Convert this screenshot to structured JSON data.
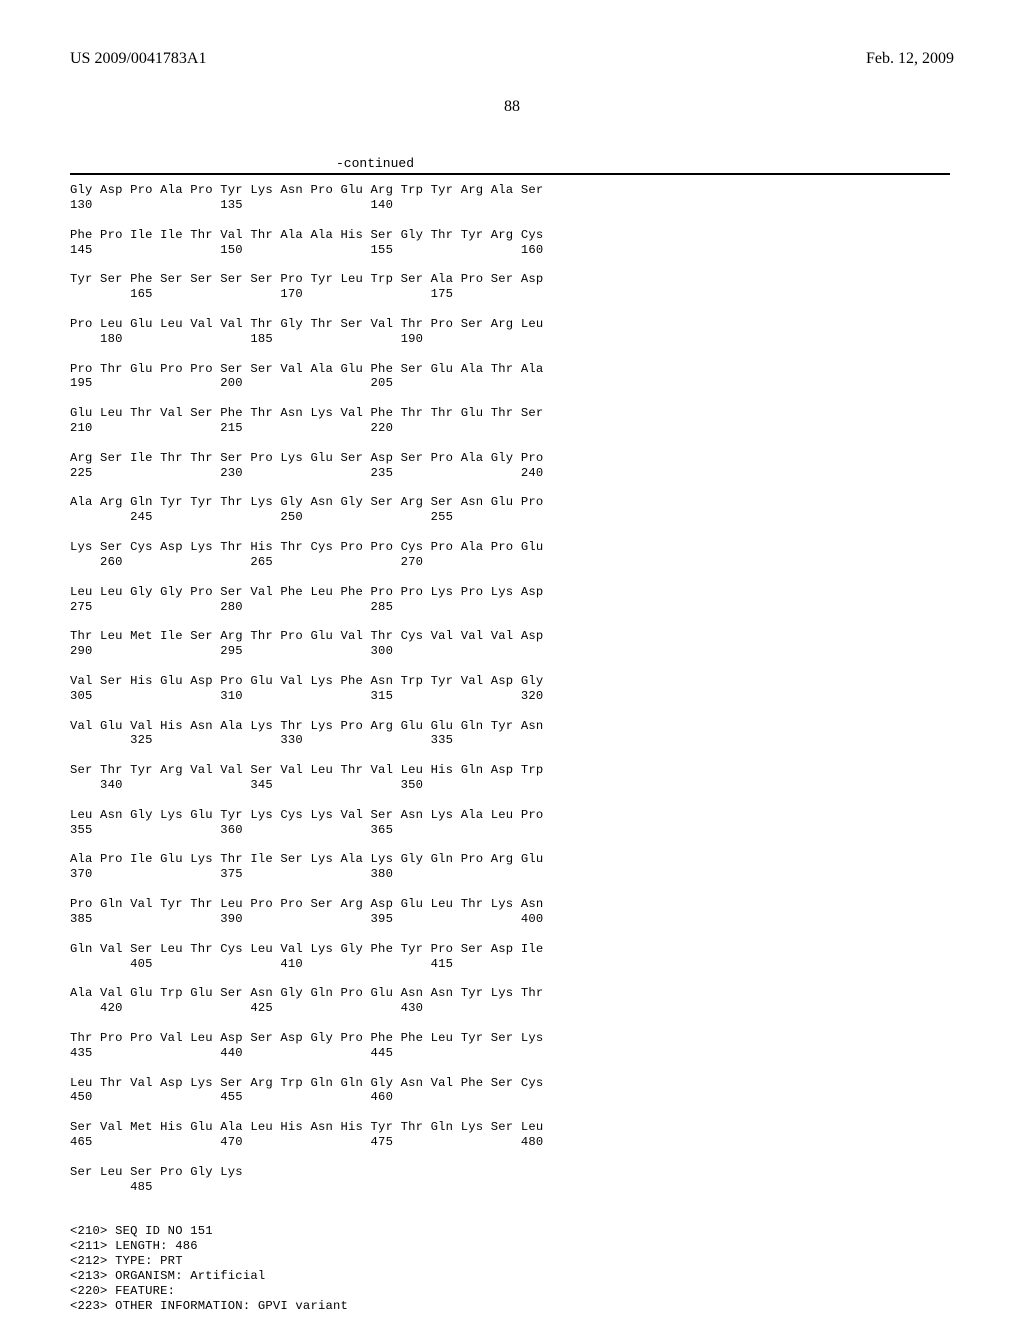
{
  "header": {
    "left": "US 2009/0041783A1",
    "right": "Feb. 12, 2009"
  },
  "page_number": "88",
  "continued_label": "-continued",
  "sequence_text": "Gly Asp Pro Ala Pro Tyr Lys Asn Pro Glu Arg Trp Tyr Arg Ala Ser\n130                 135                 140\n\nPhe Pro Ile Ile Thr Val Thr Ala Ala His Ser Gly Thr Tyr Arg Cys\n145                 150                 155                 160\n\nTyr Ser Phe Ser Ser Ser Ser Pro Tyr Leu Trp Ser Ala Pro Ser Asp\n        165                 170                 175\n\nPro Leu Glu Leu Val Val Thr Gly Thr Ser Val Thr Pro Ser Arg Leu\n    180                 185                 190\n\nPro Thr Glu Pro Pro Ser Ser Val Ala Glu Phe Ser Glu Ala Thr Ala\n195                 200                 205\n\nGlu Leu Thr Val Ser Phe Thr Asn Lys Val Phe Thr Thr Glu Thr Ser\n210                 215                 220\n\nArg Ser Ile Thr Thr Ser Pro Lys Glu Ser Asp Ser Pro Ala Gly Pro\n225                 230                 235                 240\n\nAla Arg Gln Tyr Tyr Thr Lys Gly Asn Gly Ser Arg Ser Asn Glu Pro\n        245                 250                 255\n\nLys Ser Cys Asp Lys Thr His Thr Cys Pro Pro Cys Pro Ala Pro Glu\n    260                 265                 270\n\nLeu Leu Gly Gly Pro Ser Val Phe Leu Phe Pro Pro Lys Pro Lys Asp\n275                 280                 285\n\nThr Leu Met Ile Ser Arg Thr Pro Glu Val Thr Cys Val Val Val Asp\n290                 295                 300\n\nVal Ser His Glu Asp Pro Glu Val Lys Phe Asn Trp Tyr Val Asp Gly\n305                 310                 315                 320\n\nVal Glu Val His Asn Ala Lys Thr Lys Pro Arg Glu Glu Gln Tyr Asn\n        325                 330                 335\n\nSer Thr Tyr Arg Val Val Ser Val Leu Thr Val Leu His Gln Asp Trp\n    340                 345                 350\n\nLeu Asn Gly Lys Glu Tyr Lys Cys Lys Val Ser Asn Lys Ala Leu Pro\n355                 360                 365\n\nAla Pro Ile Glu Lys Thr Ile Ser Lys Ala Lys Gly Gln Pro Arg Glu\n370                 375                 380\n\nPro Gln Val Tyr Thr Leu Pro Pro Ser Arg Asp Glu Leu Thr Lys Asn\n385                 390                 395                 400\n\nGln Val Ser Leu Thr Cys Leu Val Lys Gly Phe Tyr Pro Ser Asp Ile\n        405                 410                 415\n\nAla Val Glu Trp Glu Ser Asn Gly Gln Pro Glu Asn Asn Tyr Lys Thr\n    420                 425                 430\n\nThr Pro Pro Val Leu Asp Ser Asp Gly Pro Phe Phe Leu Tyr Ser Lys\n435                 440                 445\n\nLeu Thr Val Asp Lys Ser Arg Trp Gln Gln Gly Asn Val Phe Ser Cys\n450                 455                 460\n\nSer Val Met His Glu Ala Leu His Asn His Tyr Thr Gln Lys Ser Leu\n465                 470                 475                 480\n\nSer Leu Ser Pro Gly Lys\n        485\n\n\n<210> SEQ ID NO 151\n<211> LENGTH: 486\n<212> TYPE: PRT\n<213> ORGANISM: Artificial\n<220> FEATURE:\n<223> OTHER INFORMATION: GPVI variant"
}
